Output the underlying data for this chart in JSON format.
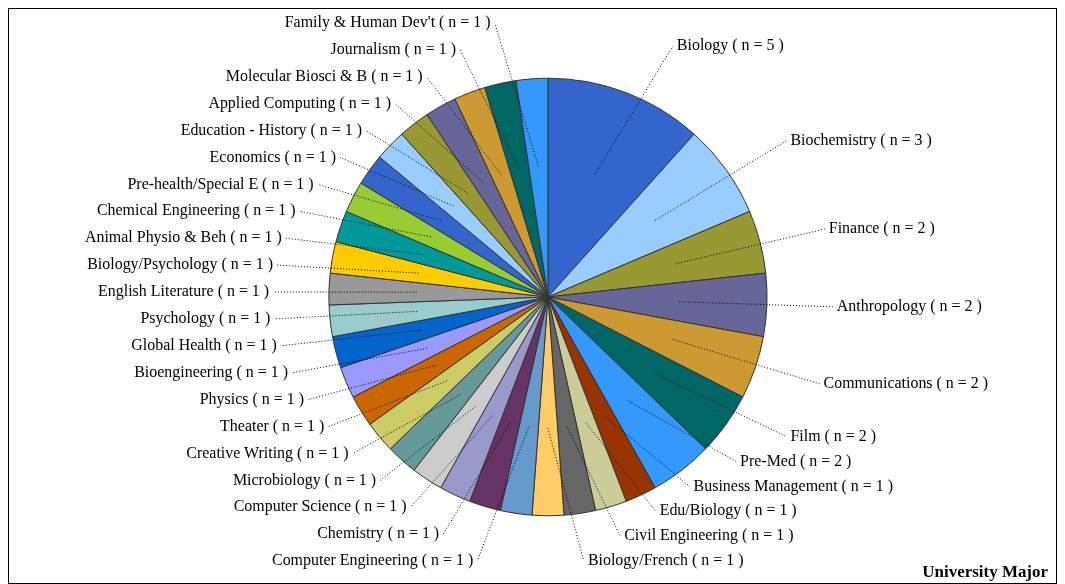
{
  "chart_data": {
    "type": "pie",
    "title": "University Major",
    "legend": false,
    "categories": [
      "Biology ( n = 5 )",
      "Biochemistry ( n = 3 )",
      "Finance ( n = 2 )",
      "Anthropology ( n = 2 )",
      "Communications ( n = 2 )",
      "Film ( n = 2 )",
      "Pre-Med ( n = 2 )",
      "Business Management ( n = 1 )",
      "Edu/Biology ( n = 1 )",
      "Civil Engineering ( n = 1 )",
      "Biology/French ( n = 1 )",
      "Computer Engineering ( n = 1 )",
      "Chemistry ( n = 1 )",
      "Computer Science ( n = 1 )",
      "Microbiology ( n = 1 )",
      "Creative Writing ( n = 1 )",
      "Theater ( n = 1 )",
      "Physics ( n = 1 )",
      "Bioengineering ( n = 1 )",
      "Global Health ( n = 1 )",
      "Psychology ( n = 1 )",
      "English Literature ( n = 1 )",
      "Biology/Psychology ( n = 1 )",
      "Animal Physio & Beh ( n = 1 )",
      "Chemical Engineering ( n = 1 )",
      "Pre-health/Special E ( n = 1 )",
      "Economics ( n = 1 )",
      "Education - History ( n = 1 )",
      "Applied Computing ( n = 1 )",
      "Molecular Biosci & B ( n = 1 )",
      "Journalism ( n = 1 )",
      "Family & Human Dev't ( n = 1 )"
    ],
    "values": [
      5,
      3,
      2,
      2,
      2,
      2,
      2,
      1,
      1,
      1,
      1,
      1,
      1,
      1,
      1,
      1,
      1,
      1,
      1,
      1,
      1,
      1,
      1,
      1,
      1,
      1,
      1,
      1,
      1,
      1,
      1,
      1
    ],
    "colors": [
      "#3366cc",
      "#99ccff",
      "#999933",
      "#666699",
      "#cc9933",
      "#006666",
      "#3399ff",
      "#993300",
      "#cccc99",
      "#666666",
      "#ffcc66",
      "#6699cc",
      "#663366",
      "#9999cc",
      "#cccccc",
      "#669999",
      "#cccc66",
      "#cc6600",
      "#9999ff",
      "#0066cc",
      "#99cccc",
      "#999999",
      "#ffcc00",
      "#009999",
      "#99cc33",
      "#3366cc",
      "#99ccff",
      "#999933",
      "#666699",
      "#cc9933",
      "#006666",
      "#3399ff"
    ]
  }
}
